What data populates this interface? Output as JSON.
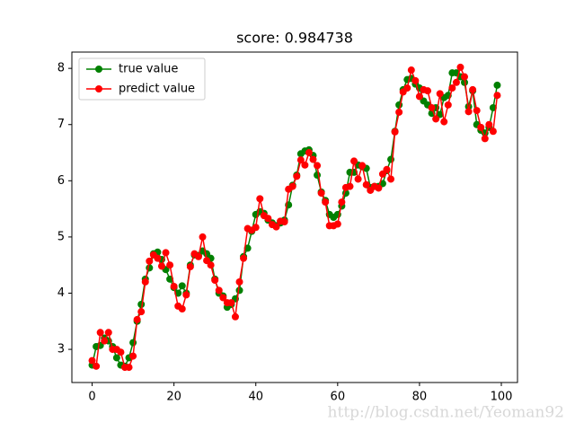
{
  "chart_data": {
    "type": "line",
    "title": "score: 0.984738",
    "x": [
      0,
      1,
      2,
      3,
      4,
      5,
      6,
      7,
      8,
      9,
      10,
      11,
      12,
      13,
      14,
      15,
      16,
      17,
      18,
      19,
      20,
      21,
      22,
      23,
      24,
      25,
      26,
      27,
      28,
      29,
      30,
      31,
      32,
      33,
      34,
      35,
      36,
      37,
      38,
      39,
      40,
      41,
      42,
      43,
      44,
      45,
      46,
      47,
      48,
      49,
      50,
      51,
      52,
      53,
      54,
      55,
      56,
      57,
      58,
      59,
      60,
      61,
      62,
      63,
      64,
      65,
      66,
      67,
      68,
      69,
      70,
      71,
      72,
      73,
      74,
      75,
      76,
      77,
      78,
      79,
      80,
      81,
      82,
      83,
      84,
      85,
      86,
      87,
      88,
      89,
      90,
      91,
      92,
      93,
      94,
      95,
      96,
      97,
      98,
      99
    ],
    "series": [
      {
        "name": "true value",
        "color": "#008000",
        "values": [
          2.72,
          3.05,
          3.07,
          3.2,
          3.15,
          3.05,
          2.85,
          2.72,
          2.7,
          2.85,
          3.12,
          3.5,
          3.8,
          4.25,
          4.45,
          4.7,
          4.73,
          4.6,
          4.42,
          4.25,
          4.1,
          4.0,
          4.13,
          4.0,
          4.5,
          4.68,
          4.67,
          4.75,
          4.7,
          4.62,
          4.25,
          4.0,
          3.95,
          3.75,
          3.8,
          3.9,
          4.05,
          4.65,
          4.8,
          5.1,
          5.4,
          5.45,
          5.42,
          5.3,
          5.25,
          5.2,
          5.25,
          5.3,
          5.57,
          5.92,
          6.1,
          6.48,
          6.53,
          6.55,
          6.45,
          6.1,
          5.8,
          5.65,
          5.4,
          5.35,
          5.4,
          5.55,
          5.78,
          6.15,
          6.15,
          6.28,
          6.25,
          6.22,
          5.88,
          5.9,
          5.9,
          5.95,
          6.18,
          6.38,
          6.88,
          7.35,
          7.62,
          7.8,
          7.82,
          7.72,
          7.65,
          7.42,
          7.35,
          7.2,
          7.3,
          7.18,
          7.48,
          7.52,
          7.92,
          7.92,
          7.85,
          7.75,
          7.32,
          7.6,
          7.0,
          6.9,
          6.85,
          6.95,
          7.3,
          7.7
        ]
      },
      {
        "name": "predict value",
        "color": "#ff0000",
        "values": [
          2.8,
          2.7,
          3.3,
          3.15,
          3.3,
          3.0,
          3.0,
          2.95,
          2.68,
          2.68,
          2.88,
          3.53,
          3.67,
          4.2,
          4.57,
          4.68,
          4.62,
          4.48,
          4.72,
          4.5,
          4.12,
          3.77,
          3.72,
          3.97,
          4.47,
          4.7,
          4.65,
          5.0,
          4.58,
          4.5,
          4.23,
          4.05,
          3.92,
          3.83,
          3.83,
          3.58,
          4.2,
          4.62,
          5.15,
          5.12,
          5.17,
          5.68,
          5.38,
          5.33,
          5.22,
          5.18,
          5.28,
          5.27,
          5.85,
          5.9,
          6.08,
          6.37,
          6.28,
          6.5,
          6.38,
          6.27,
          5.78,
          5.62,
          5.2,
          5.2,
          5.23,
          5.62,
          5.88,
          5.9,
          6.35,
          6.03,
          6.27,
          5.93,
          5.83,
          5.9,
          5.87,
          6.12,
          6.2,
          6.03,
          6.87,
          7.22,
          7.58,
          7.65,
          7.97,
          7.78,
          7.5,
          7.62,
          7.6,
          7.3,
          7.1,
          7.55,
          7.05,
          7.35,
          7.65,
          7.75,
          8.02,
          7.85,
          7.23,
          7.62,
          7.25,
          6.95,
          6.75,
          7.0,
          6.88,
          7.52
        ]
      }
    ],
    "xlim": [
      -4.95,
      103.95
    ],
    "ylim": [
      2.41,
      8.29
    ],
    "xticks": [
      0,
      20,
      40,
      60,
      80,
      100
    ],
    "yticks": [
      3,
      4,
      5,
      6,
      7,
      8
    ],
    "legend": "upper left",
    "watermark": "http://blog.csdn.net/Yeoman92"
  }
}
